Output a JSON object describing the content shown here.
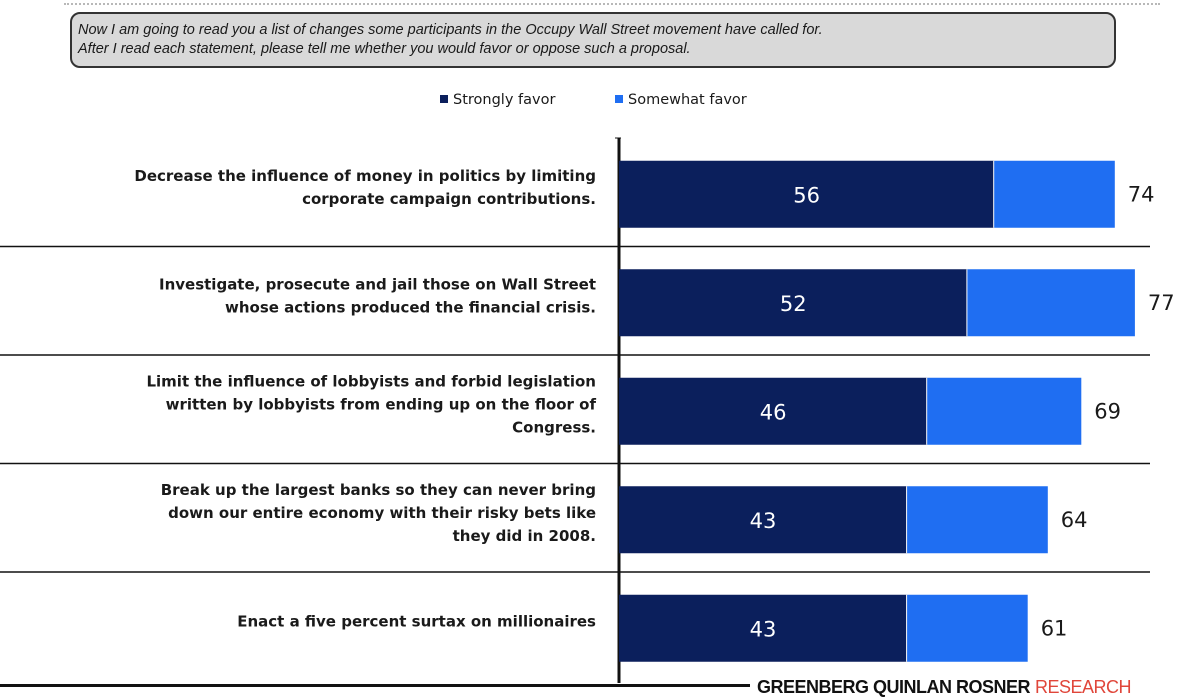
{
  "question": {
    "line1": "Now I am going to read you a list of changes  some participants  in the Occupy  Wall Street movement have  called for.",
    "line2": "After  I read each statement,  please  tell me whether  you would favor or oppose  such a proposal."
  },
  "chart_data": {
    "type": "bar",
    "orientation": "horizontal",
    "stacked": true,
    "legend_position": "top",
    "grid": false,
    "categories": [
      [
        "Decrease the influence of money in politics by limiting",
        "corporate campaign contributions."
      ],
      [
        "Investigate, prosecute and jail those on Wall Street",
        "whose actions produced the financial crisis."
      ],
      [
        "Limit the influence of lobbyists and forbid legislation",
        "written by lobbyists from ending up on the floor of",
        "Congress."
      ],
      [
        "Break up the largest banks so they can never bring",
        "down our entire economy with their risky bets like",
        "they did in 2008."
      ],
      [
        "Enact a five percent surtax on millionaires"
      ]
    ],
    "series": [
      {
        "name": "Strongly favor",
        "color": "#0b1f5c",
        "values": [
          56,
          52,
          46,
          43,
          43
        ]
      },
      {
        "name": "Somewhat favor",
        "color": "#1f6ef2",
        "values": [
          18,
          25,
          23,
          21,
          18
        ]
      }
    ],
    "totals": [
      74,
      77,
      69,
      64,
      61
    ],
    "xlim": [
      0,
      100
    ]
  },
  "branding": {
    "name": "GREENBERG QUINLAN ROSNER",
    "suffix": "RESEARCH",
    "suffix_color": "#e0463a"
  }
}
